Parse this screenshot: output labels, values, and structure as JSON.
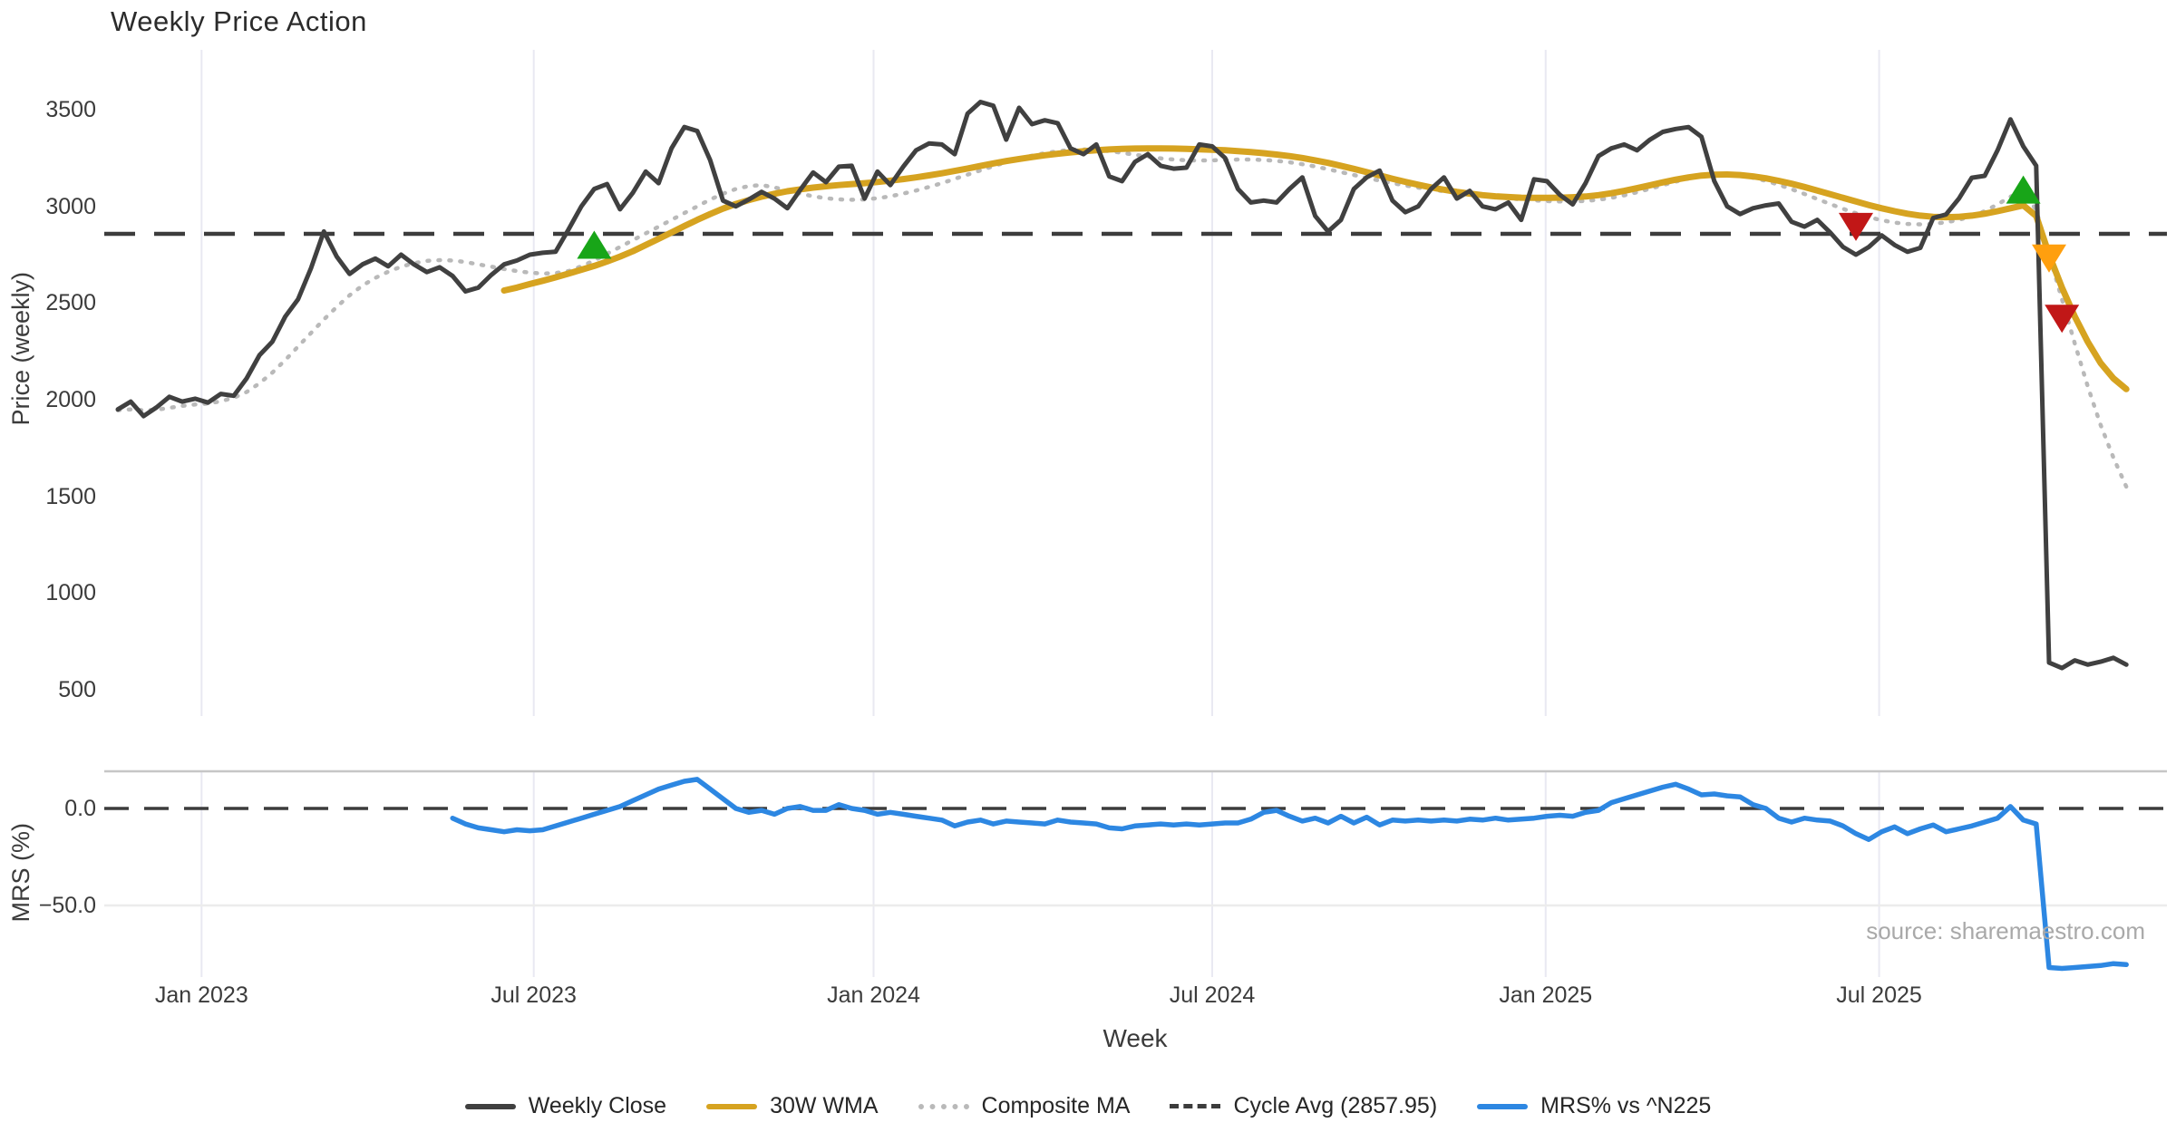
{
  "title": "Weekly Price Action",
  "source_credit": "source: sharemaestro.com",
  "colors": {
    "weekly_close": "#404040",
    "wma": "#d6a320",
    "composite": "#b9b9b9",
    "cycle_avg": "#3c3c3c",
    "mrs": "#2d87e2",
    "buy": "#18a518",
    "warning": "#ff9f0e",
    "sell": "#c11717",
    "grid": "#e9e9f2",
    "mrs_top_line": "#c6c6c6",
    "mrs_minor_line": "#ececec",
    "tick_text": "#3b3b3b"
  },
  "legend": {
    "items": [
      {
        "label": "Weekly Close",
        "swatch": "solid",
        "color": "#404040"
      },
      {
        "label": "30W WMA",
        "swatch": "solid",
        "color": "#d6a320"
      },
      {
        "label": "Composite MA",
        "swatch": "dotted",
        "color": "#b9b9b9"
      },
      {
        "label": "Cycle Avg (2857.95)",
        "swatch": "dashed",
        "color": "#3c3c3c"
      },
      {
        "label": "MRS% vs ^N225",
        "swatch": "solid",
        "color": "#2d87e2"
      }
    ]
  },
  "chart_data": [
    {
      "type": "line",
      "panel": "price",
      "title": "Weekly Price Action",
      "xlabel": "Week",
      "ylabel": "Price (weekly)",
      "ylim": [
        350,
        3700
      ],
      "grid": "vertical-only",
      "yticks": [
        3500,
        3000,
        2500,
        2000,
        1500,
        1000,
        500
      ],
      "x_ticks": {
        "labels": [
          "Jan 2023",
          "Jul 2023",
          "Jan 2024",
          "Jul 2024",
          "Jan 2025",
          "Jul 2025"
        ],
        "week_index": [
          6.5,
          32.3,
          58.7,
          85.0,
          110.9,
          136.8
        ]
      },
      "cycle_avg": {
        "label": "Cycle Avg (2857.95)",
        "value": 2857.95
      },
      "series": [
        {
          "name": "Weekly Close",
          "style": "solid",
          "color": "#404040",
          "start_week": 0,
          "values": [
            1950,
            1990,
            1915,
            1960,
            2015,
            1990,
            2005,
            1985,
            2030,
            2020,
            2110,
            2230,
            2300,
            2430,
            2520,
            2680,
            2870,
            2740,
            2650,
            2700,
            2730,
            2690,
            2750,
            2700,
            2660,
            2685,
            2640,
            2560,
            2580,
            2645,
            2700,
            2720,
            2750,
            2760,
            2765,
            2880,
            3000,
            3090,
            3115,
            2985,
            3070,
            3180,
            3120,
            3300,
            3410,
            3390,
            3240,
            3030,
            3000,
            3035,
            3075,
            3040,
            2990,
            3085,
            3175,
            3125,
            3205,
            3210,
            3040,
            3180,
            3110,
            3205,
            3290,
            3325,
            3320,
            3270,
            3480,
            3540,
            3520,
            3345,
            3510,
            3425,
            3445,
            3430,
            3300,
            3270,
            3320,
            3155,
            3130,
            3230,
            3270,
            3210,
            3195,
            3200,
            3320,
            3310,
            3250,
            3090,
            3020,
            3030,
            3020,
            3090,
            3150,
            2950,
            2870,
            2930,
            3090,
            3150,
            3185,
            3030,
            2970,
            3000,
            3090,
            3150,
            3040,
            3080,
            3000,
            2985,
            3020,
            2930,
            3140,
            3130,
            3060,
            3010,
            3120,
            3260,
            3300,
            3320,
            3290,
            3345,
            3385,
            3400,
            3410,
            3360,
            3130,
            3000,
            2960,
            2990,
            3005,
            3015,
            2920,
            2895,
            2930,
            2865,
            2790,
            2750,
            2790,
            2850,
            2800,
            2765,
            2785,
            2940,
            2958,
            3040,
            3148,
            3158,
            3290,
            3450,
            3310,
            3210,
            640,
            612,
            652,
            630,
            645,
            665,
            630
          ]
        },
        {
          "name": "30W WMA",
          "style": "solid",
          "color": "#d6a320",
          "start_week": 30,
          "values": [
            2565,
            2580,
            2598,
            2615,
            2633,
            2652,
            2672,
            2692,
            2715,
            2740,
            2768,
            2800,
            2832,
            2865,
            2898,
            2930,
            2960,
            2988,
            3012,
            3032,
            3050,
            3065,
            3078,
            3088,
            3097,
            3104,
            3110,
            3115,
            3120,
            3126,
            3133,
            3141,
            3150,
            3160,
            3171,
            3183,
            3196,
            3209,
            3222,
            3234,
            3245,
            3255,
            3264,
            3272,
            3279,
            3285,
            3290,
            3294,
            3297,
            3299,
            3300,
            3300,
            3299,
            3297,
            3295,
            3293,
            3290,
            3286,
            3281,
            3275,
            3268,
            3260,
            3250,
            3238,
            3225,
            3210,
            3194,
            3177,
            3160,
            3143,
            3127,
            3112,
            3098,
            3086,
            3075,
            3066,
            3058,
            3052,
            3048,
            3045,
            3044,
            3044,
            3045,
            3047,
            3051,
            3058,
            3068,
            3080,
            3094,
            3109,
            3124,
            3138,
            3150,
            3159,
            3164,
            3165,
            3162,
            3155,
            3145,
            3132,
            3117,
            3100,
            3082,
            3063,
            3044,
            3025,
            3007,
            2990,
            2975,
            2962,
            2952,
            2946,
            2944,
            2946,
            2952,
            2962,
            2975,
            2990,
            3005,
            2950,
            2750,
            2580,
            2430,
            2300,
            2190,
            2110,
            2055
          ]
        },
        {
          "name": "Composite MA",
          "style": "dotted",
          "color": "#b9b9b9",
          "start_week": 0,
          "values": [
            1945,
            1950,
            1945,
            1948,
            1958,
            1968,
            1975,
            1980,
            1992,
            2010,
            2040,
            2085,
            2140,
            2205,
            2275,
            2345,
            2415,
            2480,
            2540,
            2590,
            2630,
            2662,
            2688,
            2706,
            2718,
            2722,
            2720,
            2712,
            2700,
            2688,
            2676,
            2665,
            2657,
            2652,
            2655,
            2665,
            2690,
            2720,
            2755,
            2790,
            2825,
            2860,
            2895,
            2930,
            2965,
            3000,
            3035,
            3065,
            3090,
            3105,
            3110,
            3098,
            3082,
            3066,
            3052,
            3042,
            3036,
            3034,
            3036,
            3042,
            3052,
            3066,
            3082,
            3100,
            3120,
            3142,
            3164,
            3186,
            3208,
            3228,
            3246,
            3262,
            3275,
            3285,
            3292,
            3294,
            3292,
            3286,
            3277,
            3267,
            3257,
            3248,
            3242,
            3238,
            3237,
            3238,
            3240,
            3242,
            3242,
            3240,
            3235,
            3228,
            3218,
            3206,
            3192,
            3177,
            3162,
            3147,
            3133,
            3120,
            3108,
            3097,
            3087,
            3078,
            3070,
            3062,
            3055,
            3048,
            3042,
            3036,
            3031,
            3027,
            3025,
            3025,
            3028,
            3034,
            3044,
            3057,
            3073,
            3091,
            3110,
            3128,
            3144,
            3156,
            3163,
            3164,
            3159,
            3148,
            3132,
            3112,
            3089,
            3064,
            3038,
            3012,
            2987,
            2964,
            2944,
            2928,
            2916,
            2909,
            2907,
            2910,
            2918,
            2930,
            2950,
            2975,
            3010,
            3050,
            3080,
            2980,
            2750,
            2520,
            2290,
            2070,
            1870,
            1700,
            1550
          ]
        }
      ],
      "markers": [
        {
          "name": "buy-signal-1",
          "shape": "triangle-up",
          "color": "#18a518",
          "week": 37,
          "value": 2790
        },
        {
          "name": "sell-signal-1",
          "shape": "triangle-down",
          "color": "#c11717",
          "week": 135,
          "value": 2905
        },
        {
          "name": "buy-signal-2",
          "shape": "triangle-up",
          "color": "#18a518",
          "week": 148,
          "value": 3075
        },
        {
          "name": "warning-signal",
          "shape": "triangle-down",
          "color": "#ff9f0e",
          "week": 150,
          "value": 2742
        },
        {
          "name": "sell-signal-2",
          "shape": "triangle-down",
          "color": "#c11717",
          "week": 151,
          "value": 2430
        }
      ]
    },
    {
      "type": "line",
      "panel": "mrs",
      "ylabel": "MRS (%)",
      "ylim": [
        -88,
        19
      ],
      "yticks": [
        {
          "label": "0.0",
          "value": 0
        },
        {
          "label": "−50.0",
          "value": -50
        }
      ],
      "zero_line": 0,
      "series": [
        {
          "name": "MRS% vs ^N225",
          "style": "solid",
          "color": "#2d87e2",
          "start_week": 26,
          "values": [
            -5,
            -8,
            -10,
            -11,
            -12,
            -11,
            -11.5,
            -11,
            -9,
            -7,
            -5,
            -3,
            -1,
            1,
            4,
            7,
            10,
            12,
            14,
            15,
            10,
            5,
            0,
            -2,
            -1,
            -3,
            0,
            1,
            -1,
            -1,
            2,
            0,
            -1,
            -3,
            -2,
            -3,
            -4,
            -5,
            -6,
            -9,
            -7,
            -6,
            -8,
            -6.5,
            -7,
            -7.5,
            -8,
            -6,
            -7,
            -7.5,
            -8,
            -10,
            -10.5,
            -9,
            -8.5,
            -8,
            -8.5,
            -8,
            -8.5,
            -8,
            -7.5,
            -7.5,
            -5.5,
            -2,
            -1,
            -4,
            -6.5,
            -5,
            -7.5,
            -4,
            -7.5,
            -4.5,
            -8.5,
            -6,
            -6.5,
            -6,
            -6.5,
            -6,
            -6.5,
            -5.5,
            -6,
            -5,
            -6,
            -5.5,
            -5,
            -4,
            -3.5,
            -4,
            -2,
            -1,
            3,
            5,
            7,
            9,
            11,
            12.5,
            10,
            7,
            7.5,
            6.5,
            6,
            2,
            0,
            -5,
            -7,
            -5,
            -6,
            -6.5,
            -9,
            -13,
            -16,
            -12,
            -9.5,
            -13,
            -10.5,
            -8.5,
            -12,
            -10.5,
            -9,
            -7,
            -5,
            1,
            -6,
            -8,
            -82,
            -82.5,
            -82,
            -81.5,
            -81,
            -80,
            -80.5
          ]
        }
      ]
    }
  ]
}
